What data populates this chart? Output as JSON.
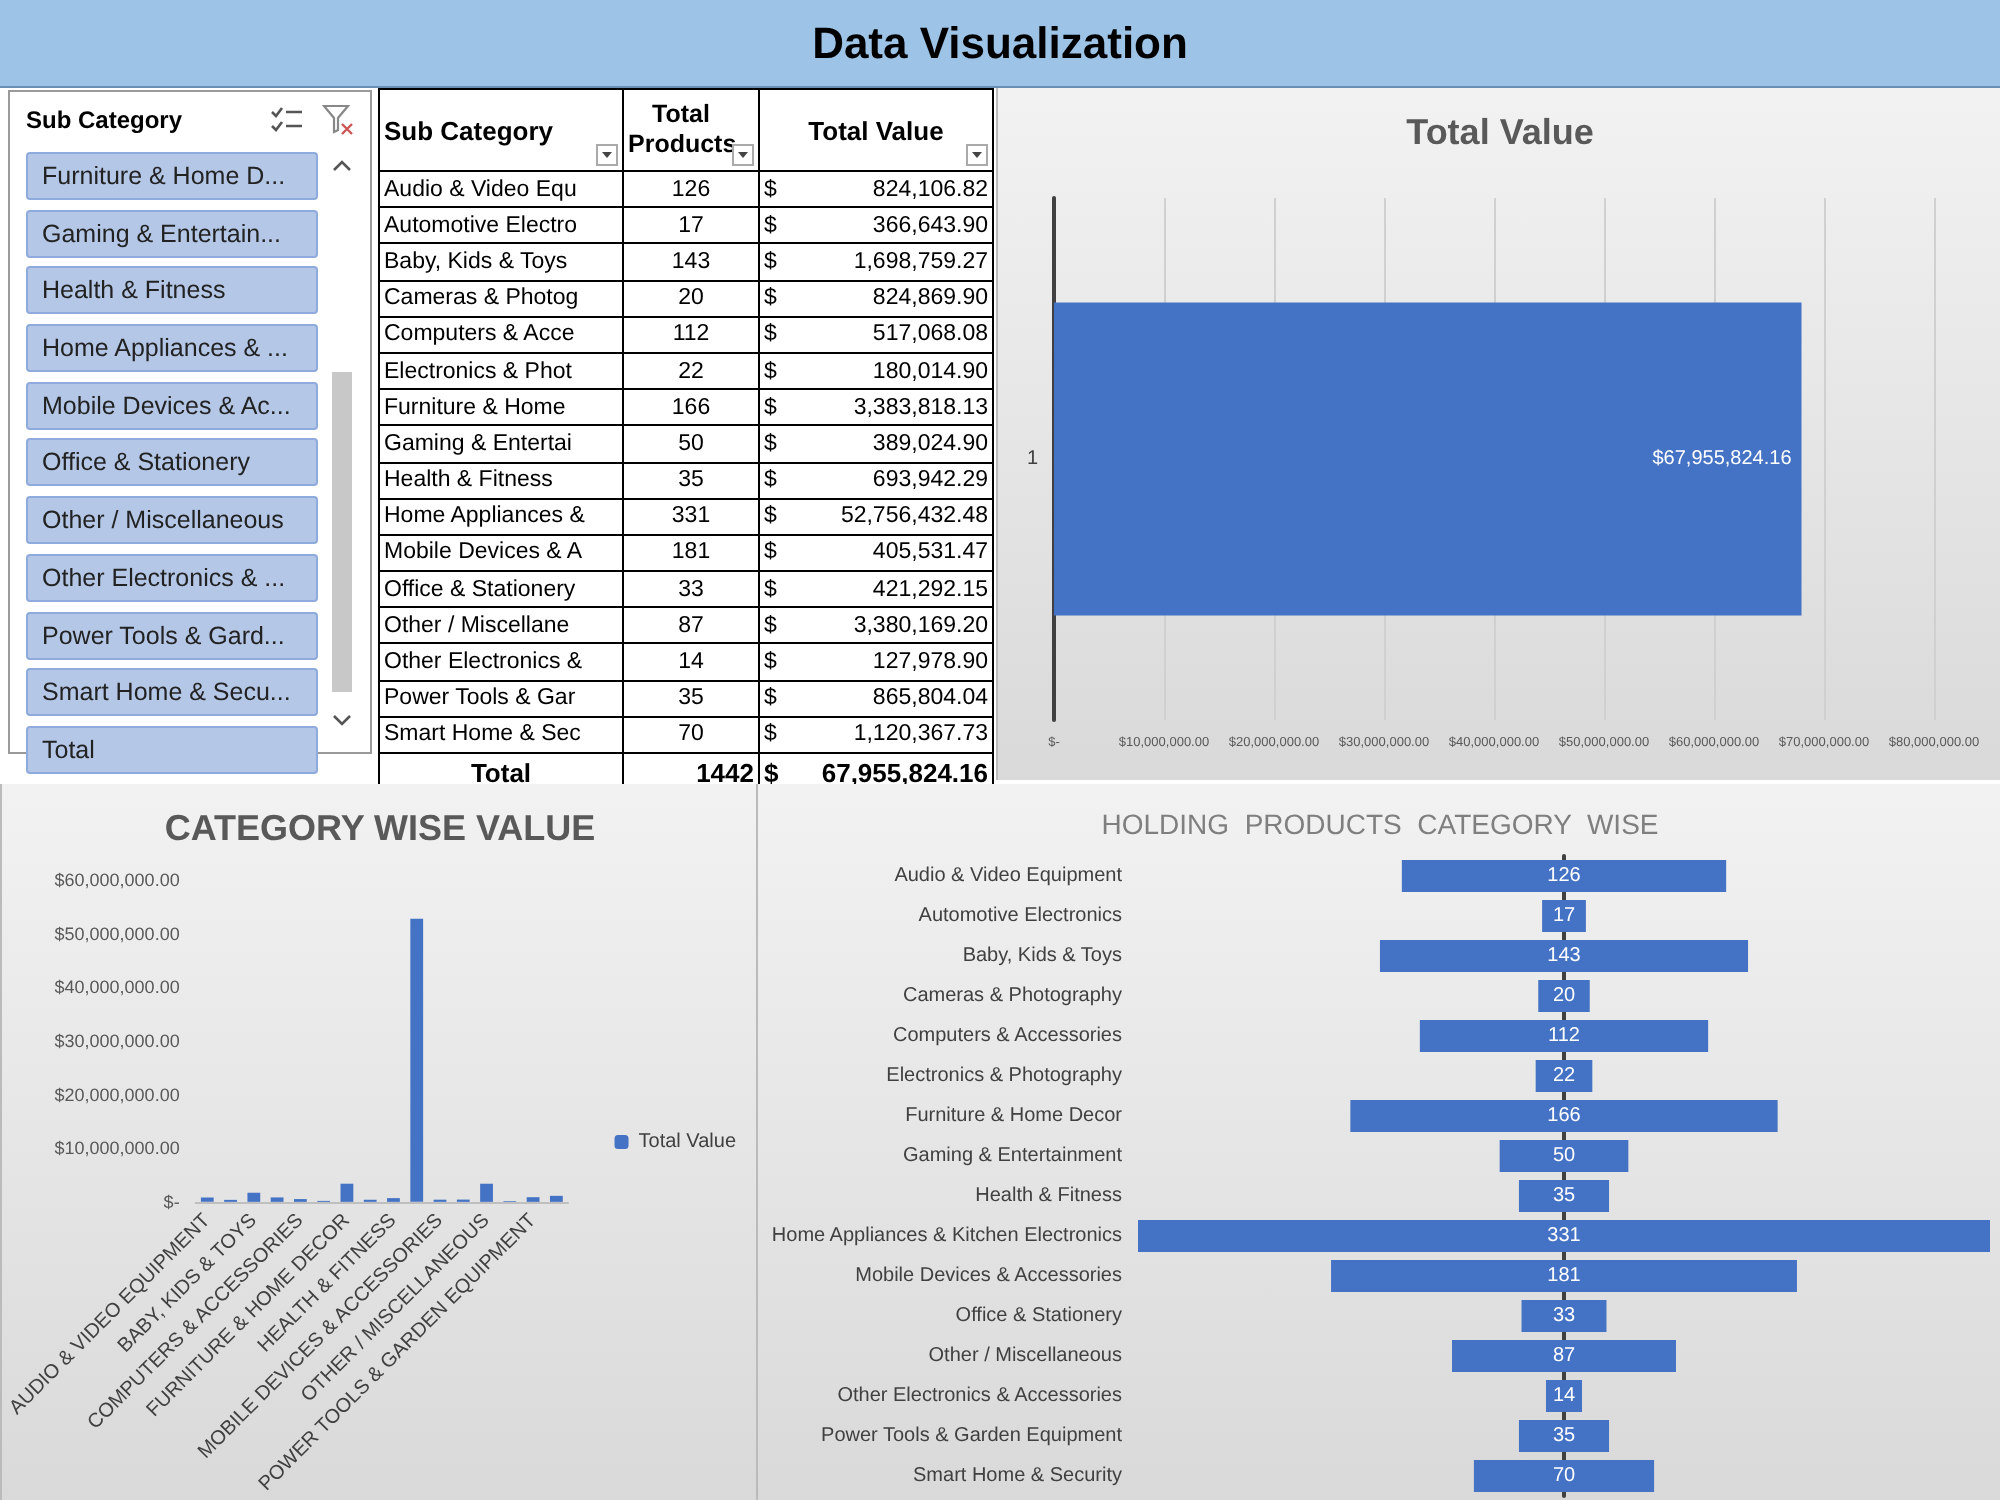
{
  "chart_data": [
    {
      "type": "other",
      "title": "Data Visualization"
    },
    {
      "type": "other",
      "title": "Sub Category",
      "annotations": [
        "Furniture & Home D...",
        "Gaming & Entertain...",
        "Health & Fitness",
        "Home Appliances & ...",
        "Mobile Devices & Ac...",
        "Office & Stationery",
        "Other / Miscellaneous",
        "Other Electronics & ...",
        "Power Tools & Gard...",
        "Smart Home & Secu...",
        "Total"
      ]
    },
    {
      "type": "other",
      "xlabel": "Sub Category",
      "annotations": [
        "Total"
      ],
      "categories": [
        "Audio & Video Equ",
        "Automotive Electro",
        "Baby, Kids & Toys",
        "Cameras & Photog",
        "Computers & Acce",
        "Electronics & Phot",
        "Furniture & Home",
        "Gaming & Entertai",
        "Health & Fitness",
        "Home Appliances &",
        "Mobile Devices & A",
        "Office & Stationery",
        "Other / Miscellane",
        "Other Electronics &",
        "Power Tools & Gar",
        "Smart Home & Sec"
      ],
      "series": [
        {
          "name": "Total Products",
          "values": [
            126,
            17,
            143,
            20,
            112,
            22,
            166,
            50,
            35,
            331,
            181,
            33,
            87,
            14,
            35,
            70
          ],
          "value_labels": [
            "126",
            "17",
            "143",
            "20",
            "112",
            "22",
            "166",
            "50",
            "35",
            "331",
            "181",
            "33",
            "87",
            "14",
            "35",
            "70"
          ]
        },
        {
          "name": "Total Value",
          "values": [
            824106.82,
            366643.9,
            1698759.27,
            824869.9,
            517068.08,
            180014.9,
            3383818.13,
            389024.9,
            693942.29,
            52756432.48,
            405531.47,
            421292.15,
            3380169.2,
            127978.9,
            865804.04,
            1120367.73
          ],
          "value_labels": [
            "$ 824,106.82",
            "$ 366,643.90",
            "$ 1,698,759.27",
            "$ 824,869.90",
            "$ 517,068.08",
            "$ 180,014.90",
            "$ 3,383,818.13",
            "$ 389,024.90",
            "$ 693,942.29",
            "$ 52,756,432.48",
            "$ 405,531.47",
            "$ 421,292.15",
            "$ 3,380,169.20",
            "$ 127,978.90",
            "$ 865,804.04",
            "$ 1,120,367.73"
          ]
        }
      ],
      "totals": [
        "1442",
        "$ 67,955,824.16"
      ]
    },
    {
      "type": "bar",
      "title": "Total Value",
      "orientation": "horizontal",
      "categories": [
        "1"
      ],
      "values": [
        67955824.16
      ],
      "value_labels": [
        "$67,955,824.16"
      ],
      "color": "#4472c4",
      "xlim": [
        0,
        80000000
      ],
      "xticks": [
        {
          "value": 0,
          "label": "$-"
        },
        {
          "value": 10000000,
          "label": "$10,000,000.00"
        },
        {
          "value": 20000000,
          "label": "$20,000,000.00"
        },
        {
          "value": 30000000,
          "label": "$30,000,000.00"
        },
        {
          "value": 40000000,
          "label": "$40,000,000.00"
        },
        {
          "value": 50000000,
          "label": "$50,000,000.00"
        },
        {
          "value": 60000000,
          "label": "$60,000,000.00"
        },
        {
          "value": 70000000,
          "label": "$70,000,000.00"
        },
        {
          "value": 80000000,
          "label": "$80,000,000.00"
        }
      ],
      "grid": "x"
    },
    {
      "type": "bar",
      "title": "CATEGORY WISE VALUE",
      "categories": [
        "AUDIO & VIDEO EQUIPMENT",
        null,
        "BABY, KIDS & TOYS",
        null,
        "COMPUTERS & ACCESSORIES",
        null,
        "FURNITURE & HOME DECOR",
        null,
        "HEALTH & FITNESS",
        null,
        "MOBILE DEVICES & ACCESSORIES",
        null,
        "OTHER / MISCELLANEOUS",
        null,
        "POWER TOOLS & GARDEN EQUIPMENT",
        null
      ],
      "series": [
        {
          "name": "Total Value",
          "color": "#4472c4",
          "values": [
            824106.82,
            366643.9,
            1698759.27,
            824869.9,
            517068.08,
            180014.9,
            3383818.13,
            389024.9,
            693942.29,
            52756432.48,
            405531.47,
            421292.15,
            3380169.2,
            127978.9,
            865804.04,
            1120367.73
          ]
        }
      ],
      "ylim": [
        0,
        60000000
      ],
      "yticks": [
        {
          "value": 0,
          "label": "$-"
        },
        {
          "value": 10000000,
          "label": "$10,000,000.00"
        },
        {
          "value": 20000000,
          "label": "$20,000,000.00"
        },
        {
          "value": 30000000,
          "label": "$30,000,000.00"
        },
        {
          "value": 40000000,
          "label": "$40,000,000.00"
        },
        {
          "value": 50000000,
          "label": "$50,000,000.00"
        },
        {
          "value": 60000000,
          "label": "$60,000,000.00"
        }
      ],
      "legend": "right"
    },
    {
      "type": "other",
      "title": "HOLDING  PRODUCTS  CATEGORY  WISE",
      "categories": [
        "Audio & Video Equipment",
        "Automotive Electronics",
        "Baby, Kids & Toys",
        "Cameras & Photography",
        "Computers & Accessories",
        "Electronics & Photography",
        "Furniture & Home Decor",
        "Gaming & Entertainment",
        "Health & Fitness",
        "Home Appliances & Kitchen Electronics",
        "Mobile Devices & Accessories",
        "Office & Stationery",
        "Other / Miscellaneous",
        "Other Electronics & Accessories",
        "Power Tools & Garden Equipment",
        "Smart Home & Security"
      ],
      "values": [
        126,
        17,
        143,
        20,
        112,
        22,
        166,
        50,
        35,
        331,
        181,
        33,
        87,
        14,
        35,
        70
      ],
      "color": "#4472c4",
      "data_labels": true
    }
  ]
}
